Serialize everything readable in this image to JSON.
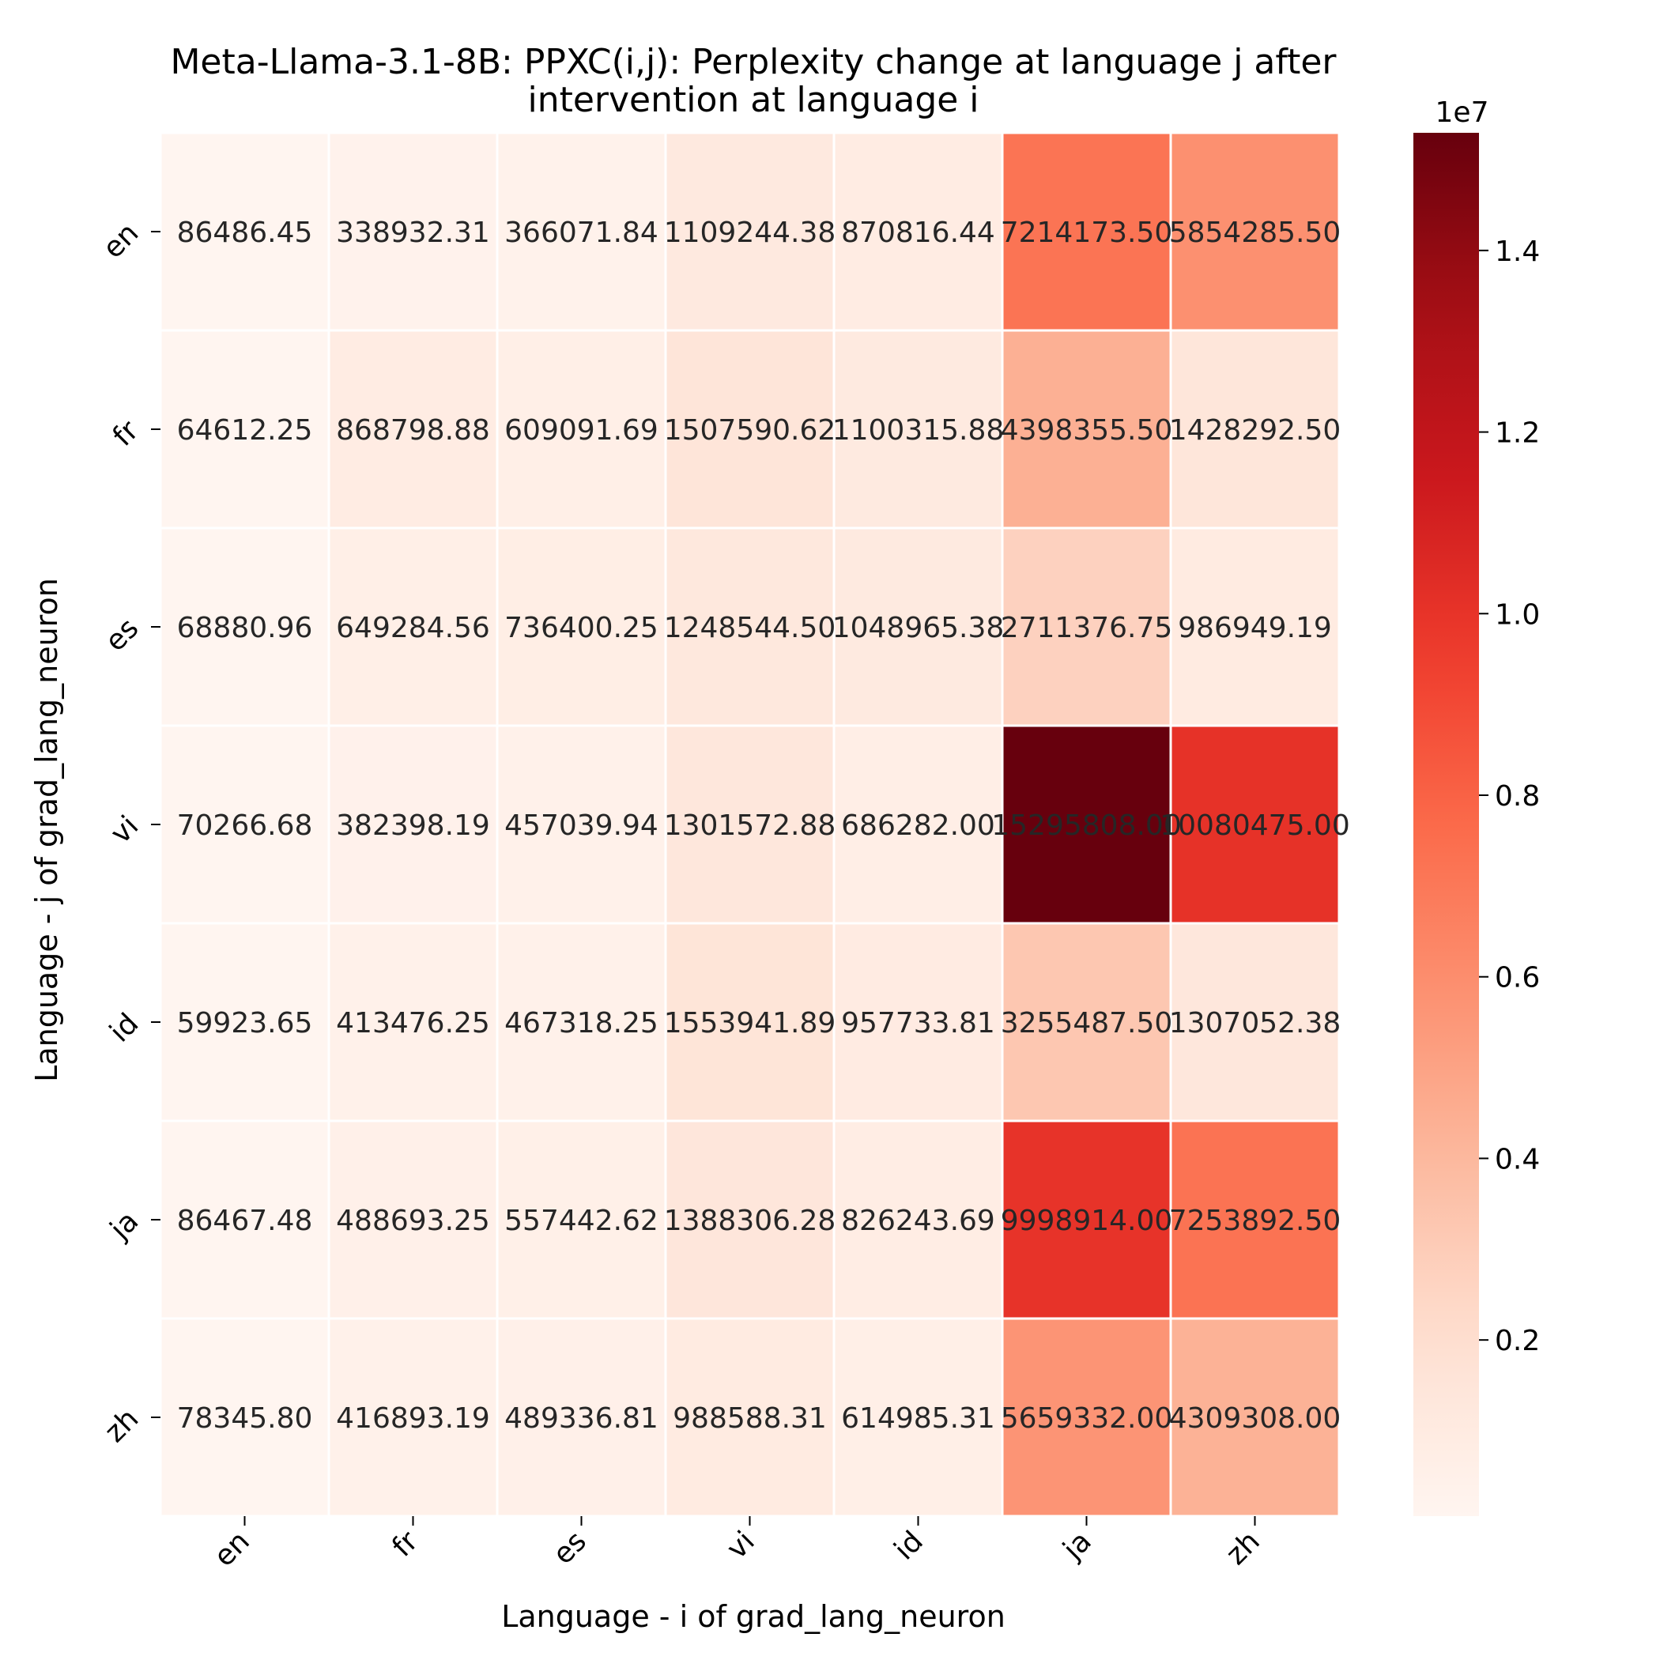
{
  "chart_data": {
    "type": "heatmap",
    "title": "Meta-Llama-3.1-8B: PPXC(i,j): Perplexity change at language j after intervention at language i",
    "title_lines": [
      "Meta-Llama-3.1-8B: PPXC(i,j): Perplexity change at language j after",
      "intervention at language i"
    ],
    "xlabel": "Language - i of grad_lang_neuron",
    "ylabel": "Language - j of grad_lang_neuron",
    "x_categories": [
      "en",
      "fr",
      "es",
      "vi",
      "id",
      "ja",
      "zh"
    ],
    "y_categories": [
      "en",
      "fr",
      "es",
      "vi",
      "id",
      "ja",
      "zh"
    ],
    "values": [
      [
        86486.45,
        338932.31,
        366071.84,
        1109244.38,
        870816.44,
        7214173.5,
        5854285.5
      ],
      [
        64612.25,
        868798.88,
        609091.69,
        1507590.62,
        1100315.88,
        4398355.5,
        1428292.5
      ],
      [
        68880.96,
        649284.56,
        736400.25,
        1248544.5,
        1048965.38,
        2711376.75,
        986949.19
      ],
      [
        70266.68,
        382398.19,
        457039.94,
        1301572.88,
        686282.0,
        15295808.0,
        10080475.0
      ],
      [
        59923.65,
        413476.25,
        467318.25,
        1553941.89,
        957733.81,
        3255487.5,
        1307052.38
      ],
      [
        86467.48,
        488693.25,
        557442.62,
        1388306.28,
        826243.69,
        9998914.0,
        7253892.5
      ],
      [
        78345.8,
        416893.19,
        489336.81,
        988588.31,
        614985.31,
        5659332.0,
        4309308.0
      ]
    ],
    "value_format": "2 decimals",
    "colormap": "Reds",
    "colorbar": {
      "offset_text": "1e7",
      "ticks": [
        0.2,
        0.4,
        0.6,
        0.8,
        1.0,
        1.2,
        1.4
      ],
      "tick_labels": [
        "0.2",
        "0.4",
        "0.6",
        "0.8",
        "1.0",
        "1.2",
        "1.4"
      ],
      "vmin": 59923.65,
      "vmax": 15295808.0
    },
    "grid": false
  }
}
